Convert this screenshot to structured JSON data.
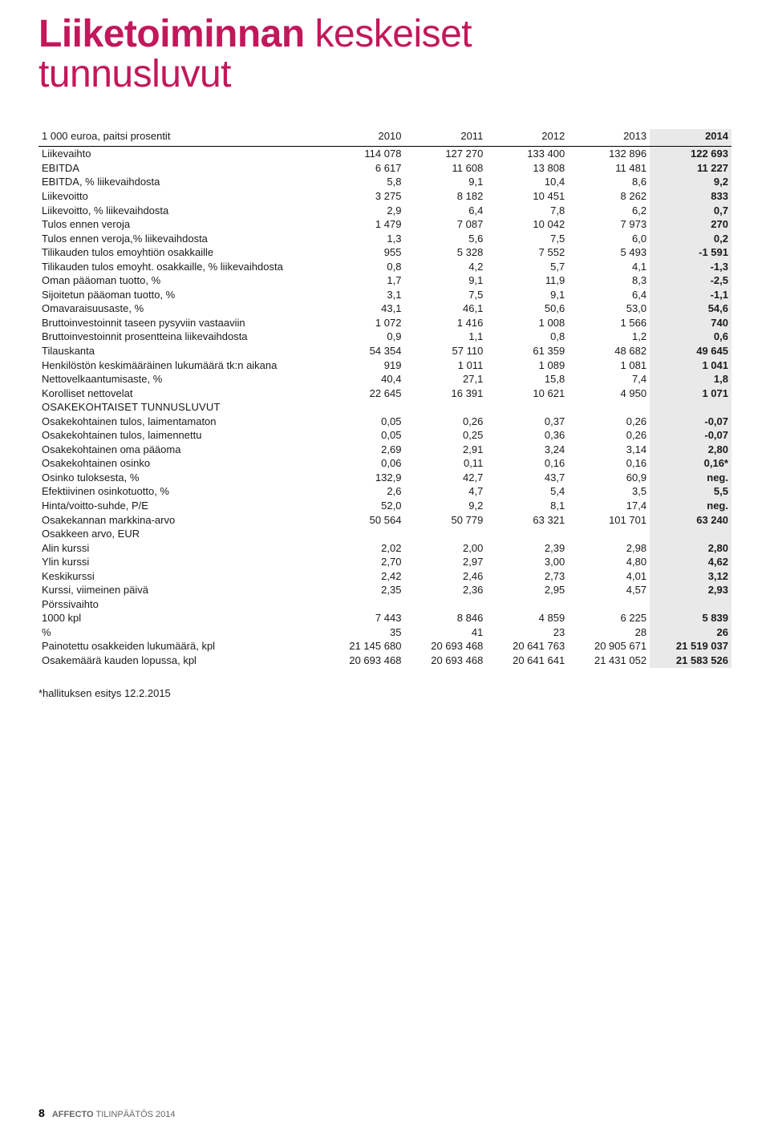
{
  "title": {
    "strong": "Liiketoiminnan",
    "light1": "keskeiset",
    "light2": "tunnusluvut"
  },
  "header": {
    "unit_label": "1 000 euroa, paitsi prosentit",
    "years": [
      "2010",
      "2011",
      "2012",
      "2013",
      "2014"
    ]
  },
  "main_rows": [
    {
      "label": "Liikevaihto",
      "v": [
        "114 078",
        "127 270",
        "133 400",
        "132 896",
        "122 693"
      ]
    },
    {
      "label": "EBITDA",
      "v": [
        "6 617",
        "11 608",
        "13 808",
        "11 481",
        "11 227"
      ]
    },
    {
      "label": "EBITDA, %  liikevaihdosta",
      "v": [
        "5,8",
        "9,1",
        "10,4",
        "8,6",
        "9,2"
      ]
    },
    {
      "label": "Liikevoitto",
      "v": [
        "3 275",
        "8 182",
        "10 451",
        "8 262",
        "833"
      ]
    },
    {
      "label": "Liikevoitto, % liikevaihdosta",
      "v": [
        "2,9",
        "6,4",
        "7,8",
        "6,2",
        "0,7"
      ]
    },
    {
      "label": "Tulos ennen veroja",
      "v": [
        "1 479",
        "7 087",
        "10 042",
        "7 973",
        "270"
      ]
    },
    {
      "label": "Tulos ennen veroja,% liikevaihdosta",
      "v": [
        "1,3",
        "5,6",
        "7,5",
        "6,0",
        "0,2"
      ]
    },
    {
      "label": "Tilikauden tulos emoyhtiön osakkaille",
      "v": [
        "955",
        "5 328",
        "7 552",
        "5 493",
        "-1 591"
      ]
    },
    {
      "label": "Tilikauden tulos emoyht. osakkaille, % liikevaihdosta",
      "v": [
        "0,8",
        "4,2",
        "5,7",
        "4,1",
        "-1,3"
      ]
    },
    {
      "label": "Oman pääoman tuotto, %",
      "v": [
        "1,7",
        "9,1",
        "11,9",
        "8,3",
        "-2,5"
      ]
    },
    {
      "label": "Sijoitetun pääoman tuotto, %",
      "v": [
        "3,1",
        "7,5",
        "9,1",
        "6,4",
        "-1,1"
      ]
    },
    {
      "label": "Omavaraisuusaste, %",
      "v": [
        "43,1",
        "46,1",
        "50,6",
        "53,0",
        "54,6"
      ]
    },
    {
      "label": "Bruttoinvestoinnit taseen pysyviin vastaaviin",
      "v": [
        "1 072",
        "1 416",
        "1 008",
        "1 566",
        "740"
      ]
    },
    {
      "label": "Bruttoinvestoinnit prosentteina liikevaihdosta",
      "v": [
        "0,9",
        "1,1",
        "0,8",
        "1,2",
        "0,6"
      ]
    },
    {
      "label": "Tilauskanta",
      "v": [
        "54 354",
        "57 110",
        "61 359",
        "48 682",
        "49 645"
      ]
    },
    {
      "label": "Henkilöstön keskimääräinen lukumäärä tk:n aikana",
      "v": [
        "919",
        "1 011",
        "1 089",
        "1 081",
        "1 041"
      ]
    },
    {
      "label": "Nettovelkaantumisaste, %",
      "v": [
        "40,4",
        "27,1",
        "15,8",
        "7,4",
        "1,8"
      ]
    },
    {
      "label": "Korolliset nettovelat",
      "v": [
        "22 645",
        "16 391",
        "10 621",
        "4 950",
        "1 071"
      ]
    }
  ],
  "section2_title": "OSAKEKOHTAISET TUNNUSLUVUT",
  "section2_rows": [
    {
      "label": "Osakekohtainen tulos, laimentamaton",
      "v": [
        "0,05",
        "0,26",
        "0,37",
        "0,26",
        "-0,07"
      ]
    },
    {
      "label": "Osakekohtainen tulos, laimennettu",
      "v": [
        "0,05",
        "0,25",
        "0,36",
        "0,26",
        "-0,07"
      ]
    },
    {
      "label": "Osakekohtainen oma pääoma",
      "v": [
        "2,69",
        "2,91",
        "3,24",
        "3,14",
        "2,80"
      ]
    },
    {
      "label": "Osakekohtainen osinko",
      "v": [
        "0,06",
        "0,11",
        "0,16",
        "0,16",
        "0,16*"
      ]
    },
    {
      "label": "Osinko tuloksesta, %",
      "v": [
        "132,9",
        "42,7",
        "43,7",
        "60,9",
        "neg."
      ]
    },
    {
      "label": "Efektiivinen osinkotuotto, %",
      "v": [
        "2,6",
        "4,7",
        "5,4",
        "3,5",
        "5,5"
      ]
    },
    {
      "label": "Hinta/voitto-suhde, P/E",
      "v": [
        "52,0",
        "9,2",
        "8,1",
        "17,4",
        "neg."
      ]
    },
    {
      "label": "Osakekannan markkina-arvo",
      "v": [
        "50 564",
        "50 779",
        "63 321",
        "101 701",
        "63 240"
      ]
    },
    {
      "label": "Osakkeen arvo, EUR",
      "v": [
        "",
        "",
        "",
        "",
        ""
      ]
    },
    {
      "label": "Alin kurssi",
      "v": [
        "2,02",
        "2,00",
        "2,39",
        "2,98",
        "2,80"
      ]
    },
    {
      "label": "Ylin kurssi",
      "v": [
        "2,70",
        "2,97",
        "3,00",
        "4,80",
        "4,62"
      ]
    },
    {
      "label": "Keskikurssi",
      "v": [
        "2,42",
        "2,46",
        "2,73",
        "4,01",
        "3,12"
      ]
    },
    {
      "label": "Kurssi, viimeinen päivä",
      "v": [
        "2,35",
        "2,36",
        "2,95",
        "4,57",
        "2,93"
      ]
    },
    {
      "label": "Pörssivaihto",
      "v": [
        "",
        "",
        "",
        "",
        ""
      ]
    },
    {
      "label": "1000 kpl",
      "v": [
        "7 443",
        "8 846",
        "4 859",
        "6 225",
        "5 839"
      ]
    },
    {
      "label": "%",
      "v": [
        "35",
        "41",
        "23",
        "28",
        "26"
      ]
    },
    {
      "label": "Painotettu osakkeiden lukumäärä, kpl",
      "v": [
        "21 145 680",
        "20 693 468",
        "20 641 763",
        "20 905 671",
        "21 519 037"
      ]
    },
    {
      "label": "Osakemäärä kauden lopussa, kpl",
      "v": [
        "20 693 468",
        "20 693 468",
        "20 641 641",
        "21 431 052",
        "21 583 526"
      ]
    }
  ],
  "footnote": "*hallituksen esitys 12.2.2015",
  "footer": {
    "page_number": "8",
    "brand": "AFFECTO",
    "doc": "TILINPÄÄTÖS 2014"
  },
  "style": {
    "accent_color": "#c2185b",
    "last_col_bg": "#e9e9e9",
    "text_color": "#1a1a1a",
    "font_size_body": 13,
    "font_size_title": 48
  }
}
